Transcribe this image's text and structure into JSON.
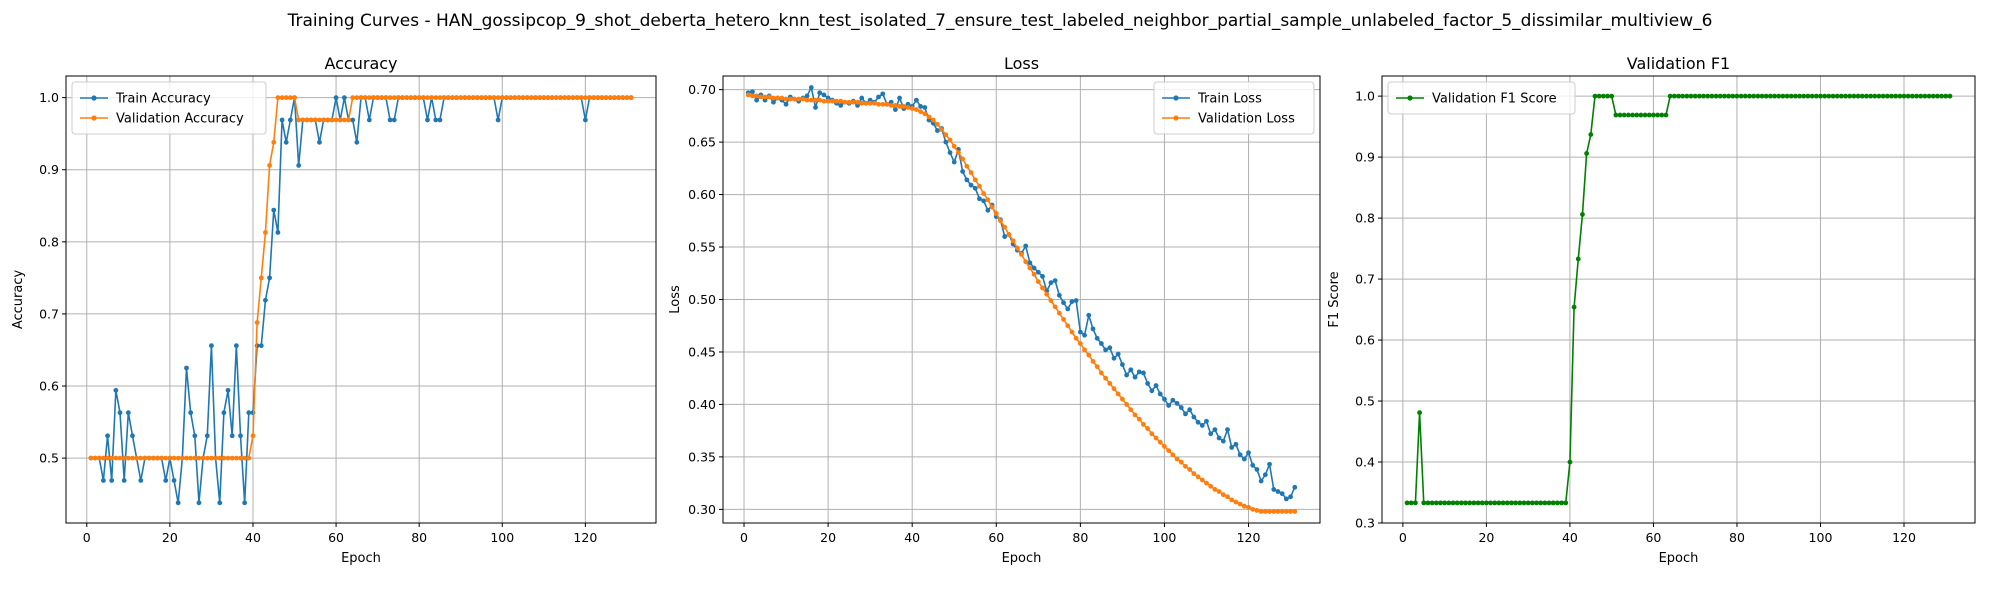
{
  "title": "Training Curves - HAN_gossipcop_9_shot_deberta_hetero_knn_test_isolated_7_ensure_test_labeled_neighbor_partial_sample_unlabeled_factor_5_dissimilar_multiview_6",
  "colors": {
    "train": "#1f77b4",
    "validation": "#ff7f0e",
    "f1": "#008000"
  },
  "chart_data": [
    {
      "type": "line",
      "title": "Accuracy",
      "xlabel": "Epoch",
      "ylabel": "Accuracy",
      "xlim": [
        -5,
        137
      ],
      "ylim": [
        0.41,
        1.03
      ],
      "xticks": [
        0,
        20,
        40,
        60,
        80,
        100,
        120
      ],
      "yticks": [
        0.5,
        0.6,
        0.7,
        0.8,
        0.9,
        1.0
      ],
      "ytick_labels": [
        "0.5",
        "0.6",
        "0.7",
        "0.8",
        "0.9",
        "1.0"
      ],
      "grid": true,
      "legend_position": "top-left",
      "x_start": 1,
      "series": [
        {
          "name": "Train Accuracy",
          "color": "#1f77b4",
          "values": [
            0.5,
            0.5,
            0.5,
            0.469,
            0.531,
            0.469,
            0.594,
            0.563,
            0.469,
            0.563,
            0.531,
            0.5,
            0.469,
            0.5,
            0.5,
            0.5,
            0.5,
            0.5,
            0.469,
            0.5,
            0.469,
            0.438,
            0.5,
            0.625,
            0.563,
            0.531,
            0.438,
            0.5,
            0.531,
            0.656,
            0.5,
            0.438,
            0.563,
            0.594,
            0.531,
            0.656,
            0.531,
            0.438,
            0.563,
            0.563,
            0.656,
            0.656,
            0.719,
            0.75,
            0.844,
            0.813,
            0.969,
            0.938,
            0.969,
            1.0,
            0.906,
            0.969,
            0.969,
            0.969,
            0.969,
            0.938,
            0.969,
            0.969,
            0.969,
            1.0,
            0.969,
            1.0,
            0.969,
            0.969,
            0.938,
            1.0,
            1.0,
            0.969,
            1.0,
            1.0,
            1.0,
            1.0,
            0.969,
            0.969,
            1.0,
            1.0,
            1.0,
            1.0,
            1.0,
            1.0,
            1.0,
            0.969,
            1.0,
            0.969,
            0.969,
            1.0,
            1.0,
            1.0,
            1.0,
            1.0,
            1.0,
            1.0,
            1.0,
            1.0,
            1.0,
            1.0,
            1.0,
            1.0,
            0.969,
            1.0,
            1.0,
            1.0,
            1.0,
            1.0,
            1.0,
            1.0,
            1.0,
            1.0,
            1.0,
            1.0,
            1.0,
            1.0,
            1.0,
            1.0,
            1.0,
            1.0,
            1.0,
            1.0,
            1.0,
            0.969,
            1.0,
            1.0,
            1.0,
            1.0,
            1.0,
            1.0,
            1.0,
            1.0,
            1.0,
            1.0,
            1.0
          ]
        },
        {
          "name": "Validation Accuracy",
          "color": "#ff7f0e",
          "values": [
            0.5,
            0.5,
            0.5,
            0.5,
            0.5,
            0.5,
            0.5,
            0.5,
            0.5,
            0.5,
            0.5,
            0.5,
            0.5,
            0.5,
            0.5,
            0.5,
            0.5,
            0.5,
            0.5,
            0.5,
            0.5,
            0.5,
            0.5,
            0.5,
            0.5,
            0.5,
            0.5,
            0.5,
            0.5,
            0.5,
            0.5,
            0.5,
            0.5,
            0.5,
            0.5,
            0.5,
            0.5,
            0.5,
            0.5,
            0.531,
            0.688,
            0.75,
            0.813,
            0.906,
            0.938,
            1.0,
            1.0,
            1.0,
            1.0,
            1.0,
            0.969,
            0.969,
            0.969,
            0.969,
            0.969,
            0.969,
            0.969,
            0.969,
            0.969,
            0.969,
            0.969,
            0.969,
            0.969,
            1.0,
            1.0,
            1.0,
            1.0,
            1.0,
            1.0,
            1.0,
            1.0,
            1.0,
            1.0,
            1.0,
            1.0,
            1.0,
            1.0,
            1.0,
            1.0,
            1.0,
            1.0,
            1.0,
            1.0,
            1.0,
            1.0,
            1.0,
            1.0,
            1.0,
            1.0,
            1.0,
            1.0,
            1.0,
            1.0,
            1.0,
            1.0,
            1.0,
            1.0,
            1.0,
            1.0,
            1.0,
            1.0,
            1.0,
            1.0,
            1.0,
            1.0,
            1.0,
            1.0,
            1.0,
            1.0,
            1.0,
            1.0,
            1.0,
            1.0,
            1.0,
            1.0,
            1.0,
            1.0,
            1.0,
            1.0,
            1.0,
            1.0,
            1.0,
            1.0,
            1.0,
            1.0,
            1.0,
            1.0,
            1.0,
            1.0,
            1.0,
            1.0
          ]
        }
      ]
    },
    {
      "type": "line",
      "title": "Loss",
      "xlabel": "Epoch",
      "ylabel": "Loss",
      "xlim": [
        -5,
        137
      ],
      "ylim": [
        0.287,
        0.713
      ],
      "xticks": [
        0,
        20,
        40,
        60,
        80,
        100,
        120
      ],
      "yticks": [
        0.3,
        0.35,
        0.4,
        0.45,
        0.5,
        0.55,
        0.6,
        0.65,
        0.7
      ],
      "ytick_labels": [
        "0.30",
        "0.35",
        "0.40",
        "0.45",
        "0.50",
        "0.55",
        "0.60",
        "0.65",
        "0.70"
      ],
      "grid": true,
      "legend_position": "top-right",
      "x_start": 1,
      "series": [
        {
          "name": "Train Loss",
          "color": "#1f77b4",
          "values": [
            0.697,
            0.698,
            0.69,
            0.695,
            0.69,
            0.694,
            0.688,
            0.692,
            0.69,
            0.686,
            0.693,
            0.691,
            0.689,
            0.692,
            0.694,
            0.702,
            0.683,
            0.697,
            0.695,
            0.692,
            0.69,
            0.687,
            0.685,
            0.688,
            0.687,
            0.689,
            0.685,
            0.692,
            0.687,
            0.69,
            0.688,
            0.693,
            0.696,
            0.686,
            0.688,
            0.681,
            0.692,
            0.682,
            0.686,
            0.684,
            0.69,
            0.684,
            0.683,
            0.671,
            0.668,
            0.661,
            0.663,
            0.65,
            0.64,
            0.631,
            0.643,
            0.622,
            0.614,
            0.609,
            0.606,
            0.596,
            0.594,
            0.585,
            0.59,
            0.579,
            0.576,
            0.56,
            0.562,
            0.553,
            0.547,
            0.544,
            0.551,
            0.535,
            0.53,
            0.526,
            0.522,
            0.508,
            0.516,
            0.518,
            0.504,
            0.497,
            0.491,
            0.498,
            0.499,
            0.469,
            0.466,
            0.485,
            0.472,
            0.463,
            0.458,
            0.452,
            0.454,
            0.444,
            0.448,
            0.438,
            0.428,
            0.433,
            0.426,
            0.431,
            0.43,
            0.42,
            0.413,
            0.418,
            0.41,
            0.405,
            0.399,
            0.404,
            0.401,
            0.397,
            0.391,
            0.395,
            0.388,
            0.383,
            0.38,
            0.384,
            0.372,
            0.376,
            0.368,
            0.365,
            0.376,
            0.359,
            0.362,
            0.352,
            0.348,
            0.354,
            0.342,
            0.338,
            0.327,
            0.333,
            0.343,
            0.319,
            0.317,
            0.315,
            0.31,
            0.312,
            0.321
          ]
        },
        {
          "name": "Validation Loss",
          "color": "#ff7f0e",
          "values": [
            0.695,
            0.694,
            0.694,
            0.693,
            0.693,
            0.693,
            0.692,
            0.692,
            0.692,
            0.691,
            0.691,
            0.691,
            0.691,
            0.691,
            0.69,
            0.69,
            0.69,
            0.69,
            0.689,
            0.689,
            0.689,
            0.689,
            0.689,
            0.688,
            0.688,
            0.688,
            0.688,
            0.687,
            0.687,
            0.687,
            0.687,
            0.686,
            0.686,
            0.686,
            0.685,
            0.685,
            0.684,
            0.684,
            0.683,
            0.682,
            0.681,
            0.679,
            0.677,
            0.674,
            0.671,
            0.667,
            0.662,
            0.657,
            0.652,
            0.646,
            0.64,
            0.634,
            0.627,
            0.621,
            0.614,
            0.608,
            0.601,
            0.595,
            0.588,
            0.582,
            0.575,
            0.569,
            0.562,
            0.556,
            0.549,
            0.543,
            0.536,
            0.53,
            0.524,
            0.517,
            0.511,
            0.505,
            0.499,
            0.493,
            0.487,
            0.481,
            0.475,
            0.469,
            0.463,
            0.458,
            0.452,
            0.447,
            0.441,
            0.436,
            0.43,
            0.425,
            0.42,
            0.415,
            0.41,
            0.405,
            0.4,
            0.395,
            0.39,
            0.386,
            0.381,
            0.377,
            0.372,
            0.368,
            0.364,
            0.36,
            0.356,
            0.352,
            0.348,
            0.345,
            0.341,
            0.338,
            0.334,
            0.331,
            0.328,
            0.325,
            0.322,
            0.319,
            0.317,
            0.314,
            0.312,
            0.309,
            0.307,
            0.305,
            0.303,
            0.302,
            0.3,
            0.299,
            0.298,
            0.298,
            0.298,
            0.298,
            0.298,
            0.298,
            0.298,
            0.298,
            0.298
          ]
        }
      ]
    },
    {
      "type": "line",
      "title": "Validation F1",
      "xlabel": "Epoch",
      "ylabel": "F1 Score",
      "xlim": [
        -5,
        137
      ],
      "ylim": [
        0.3,
        1.033
      ],
      "xticks": [
        0,
        20,
        40,
        60,
        80,
        100,
        120
      ],
      "yticks": [
        0.3,
        0.4,
        0.5,
        0.6,
        0.7,
        0.8,
        0.9,
        1.0
      ],
      "ytick_labels": [
        "0.3",
        "0.4",
        "0.5",
        "0.6",
        "0.7",
        "0.8",
        "0.9",
        "1.0"
      ],
      "grid": true,
      "legend_position": "top-left",
      "x_start": 1,
      "series": [
        {
          "name": "Validation F1 Score",
          "color": "#008000",
          "values": [
            0.333,
            0.333,
            0.333,
            0.481,
            0.333,
            0.333,
            0.333,
            0.333,
            0.333,
            0.333,
            0.333,
            0.333,
            0.333,
            0.333,
            0.333,
            0.333,
            0.333,
            0.333,
            0.333,
            0.333,
            0.333,
            0.333,
            0.333,
            0.333,
            0.333,
            0.333,
            0.333,
            0.333,
            0.333,
            0.333,
            0.333,
            0.333,
            0.333,
            0.333,
            0.333,
            0.333,
            0.333,
            0.333,
            0.333,
            0.4,
            0.654,
            0.733,
            0.806,
            0.906,
            0.937,
            1.0,
            1.0,
            1.0,
            1.0,
            1.0,
            0.969,
            0.969,
            0.969,
            0.969,
            0.969,
            0.969,
            0.969,
            0.969,
            0.969,
            0.969,
            0.969,
            0.969,
            0.969,
            1.0,
            1.0,
            1.0,
            1.0,
            1.0,
            1.0,
            1.0,
            1.0,
            1.0,
            1.0,
            1.0,
            1.0,
            1.0,
            1.0,
            1.0,
            1.0,
            1.0,
            1.0,
            1.0,
            1.0,
            1.0,
            1.0,
            1.0,
            1.0,
            1.0,
            1.0,
            1.0,
            1.0,
            1.0,
            1.0,
            1.0,
            1.0,
            1.0,
            1.0,
            1.0,
            1.0,
            1.0,
            1.0,
            1.0,
            1.0,
            1.0,
            1.0,
            1.0,
            1.0,
            1.0,
            1.0,
            1.0,
            1.0,
            1.0,
            1.0,
            1.0,
            1.0,
            1.0,
            1.0,
            1.0,
            1.0,
            1.0,
            1.0,
            1.0,
            1.0,
            1.0,
            1.0,
            1.0,
            1.0,
            1.0,
            1.0,
            1.0,
            1.0
          ]
        }
      ]
    }
  ]
}
